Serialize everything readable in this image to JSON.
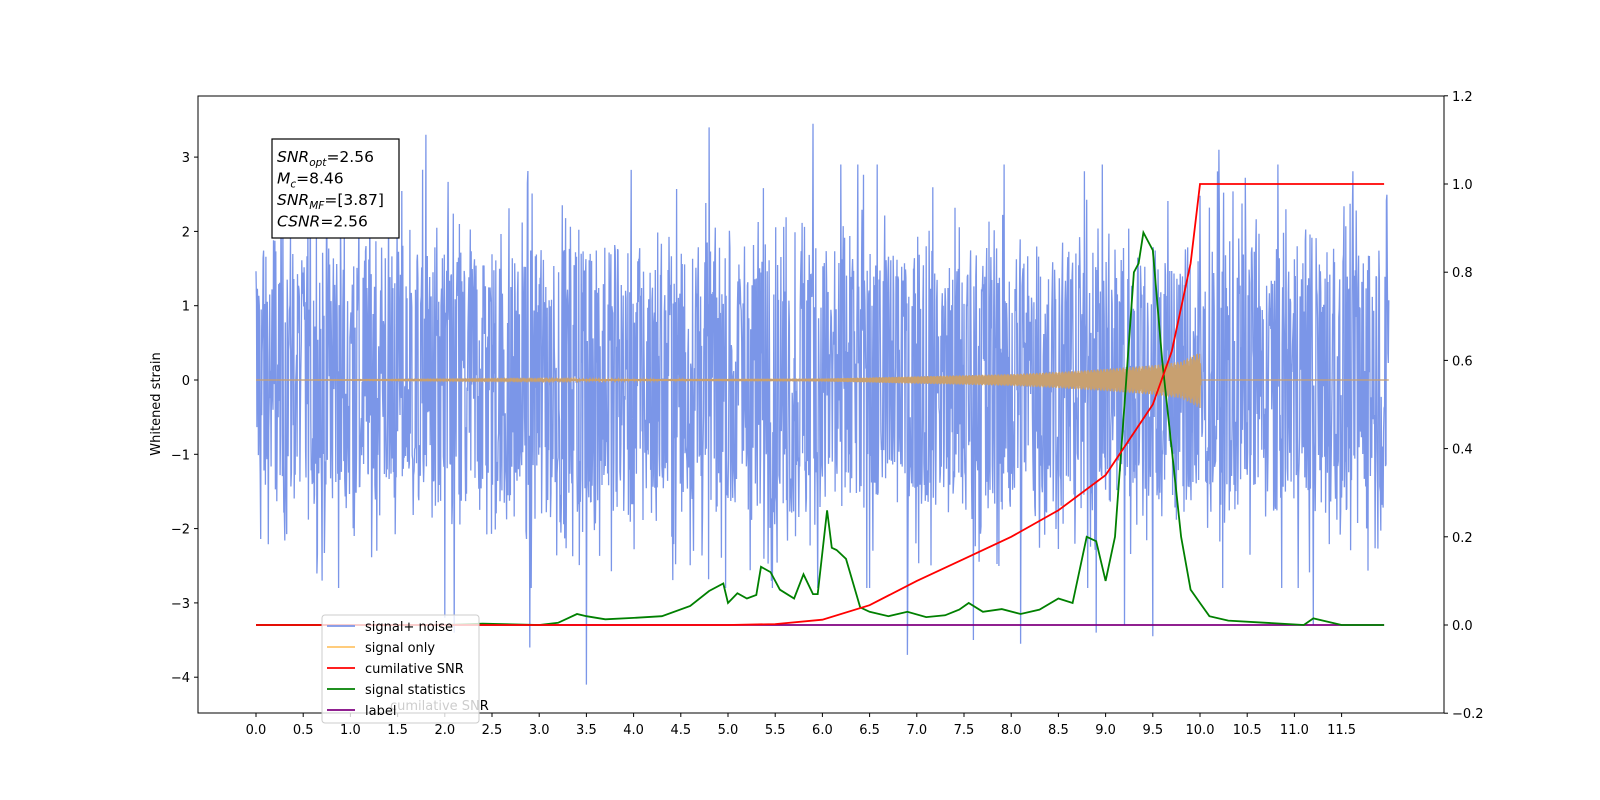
{
  "chart_data": {
    "type": "line",
    "ylabel": "Whitened strain",
    "x_ticks": [
      "0.0",
      "0.5",
      "1.0",
      "1.5",
      "2.0",
      "2.5",
      "3.0",
      "3.5",
      "4.0",
      "4.5",
      "5.0",
      "5.5",
      "6.0",
      "6.5",
      "7.0",
      "7.5",
      "8.0",
      "8.5",
      "9.0",
      "9.5",
      "10.0",
      "10.5",
      "11.0",
      "11.5"
    ],
    "left_axis": {
      "ylim": [
        -4.5,
        3.8
      ],
      "ticks": [
        "−4",
        "−3",
        "−2",
        "−1",
        "0",
        "1",
        "2",
        "3"
      ],
      "tick_values": [
        -4,
        -3,
        -2,
        -1,
        0,
        1,
        2,
        3
      ]
    },
    "right_axis": {
      "ylim": [
        -0.2,
        1.2
      ],
      "ticks": [
        "−0.2",
        "0.0",
        "0.2",
        "0.4",
        "0.6",
        "0.8",
        "1.0",
        "1.2"
      ],
      "tick_values": [
        -0.2,
        0.0,
        0.2,
        0.4,
        0.6,
        0.8,
        1.0,
        1.2
      ]
    },
    "xlim": [
      -0.6,
      12.6
    ],
    "annotation": {
      "lines": [
        {
          "name": "SNR",
          "sub": "opt",
          "value": "=2.56"
        },
        {
          "name": "M",
          "sub": "c",
          "value": "=8.46"
        },
        {
          "name": "SNR",
          "sub": "MF",
          "value": "=[3.87]"
        },
        {
          "name": "CSNR",
          "sub": "",
          "value": "=2.56"
        }
      ]
    },
    "legend": {
      "placement": "lower-left",
      "entries": [
        {
          "label": "signal+ noise",
          "color": "#7b96e8"
        },
        {
          "label": "signal only",
          "color": "#ffc46a"
        },
        {
          "label": "cumilative SNR",
          "color": "#ff0000"
        },
        {
          "label": "signal statistics",
          "color": "#008000"
        },
        {
          "label": "label",
          "color": "#800080"
        }
      ],
      "overlap_text": "cumilative SNR"
    },
    "series": [
      {
        "name": "signal+ noise",
        "axis": "left",
        "color": "#7b96e8",
        "x_range": [
          0.0,
          12.0
        ],
        "envelope": {
          "typical_amplitude": 2.0,
          "max": 3.45,
          "min": -4.1
        },
        "spikes": [
          {
            "x": 0.7,
            "y": -2.7
          },
          {
            "x": 1.8,
            "y": 3.3
          },
          {
            "x": 2.0,
            "y": -3.2
          },
          {
            "x": 2.1,
            "y": -3.4
          },
          {
            "x": 2.9,
            "y": -3.6
          },
          {
            "x": 3.5,
            "y": -4.1
          },
          {
            "x": 4.8,
            "y": 3.4
          },
          {
            "x": 5.9,
            "y": 3.45
          },
          {
            "x": 6.9,
            "y": -3.7
          },
          {
            "x": 7.6,
            "y": -3.5
          },
          {
            "x": 8.1,
            "y": -3.55
          },
          {
            "x": 8.9,
            "y": -3.4
          },
          {
            "x": 9.2,
            "y": -3.3
          },
          {
            "x": 9.5,
            "y": -3.45
          },
          {
            "x": 10.2,
            "y": 3.1
          },
          {
            "x": 11.2,
            "y": -3.3
          }
        ]
      },
      {
        "name": "signal only",
        "axis": "left",
        "color": "#ffc46a",
        "x": [
          0.0,
          6.0,
          7.0,
          8.0,
          8.5,
          9.0,
          9.5,
          9.8,
          10.0,
          10.01,
          12.0
        ],
        "amplitude": [
          0.0,
          0.02,
          0.05,
          0.08,
          0.11,
          0.15,
          0.2,
          0.25,
          0.38,
          0.0,
          0.0
        ]
      },
      {
        "name": "cumilative SNR",
        "axis": "right",
        "color": "#ff0000",
        "x": [
          0.0,
          5.0,
          5.5,
          6.0,
          6.5,
          7.0,
          7.5,
          8.0,
          8.5,
          9.0,
          9.5,
          9.7,
          9.9,
          10.0,
          11.95
        ],
        "y": [
          0.0,
          0.0,
          0.002,
          0.012,
          0.045,
          0.1,
          0.15,
          0.2,
          0.26,
          0.34,
          0.5,
          0.62,
          0.82,
          1.0,
          1.0
        ]
      },
      {
        "name": "signal statistics",
        "axis": "right",
        "color": "#008000",
        "x": [
          0.0,
          2.0,
          2.4,
          3.0,
          3.2,
          3.3,
          3.4,
          3.5,
          3.7,
          4.0,
          4.3,
          4.6,
          4.8,
          4.95,
          5.0,
          5.1,
          5.2,
          5.3,
          5.35,
          5.45,
          5.55,
          5.7,
          5.8,
          5.9,
          5.95,
          6.05,
          6.1,
          6.15,
          6.25,
          6.4,
          6.5,
          6.7,
          6.9,
          7.1,
          7.3,
          7.45,
          7.55,
          7.7,
          7.9,
          8.1,
          8.3,
          8.5,
          8.65,
          8.8,
          8.9,
          9.0,
          9.1,
          9.2,
          9.3,
          9.35,
          9.4,
          9.5,
          9.6,
          9.7,
          9.8,
          9.9,
          10.0,
          10.1,
          10.3,
          10.7,
          11.1,
          11.2,
          11.5,
          11.95
        ],
        "y": [
          0.0,
          0.0,
          0.003,
          0.0,
          0.005,
          0.015,
          0.025,
          0.02,
          0.013,
          0.016,
          0.02,
          0.043,
          0.077,
          0.094,
          0.05,
          0.072,
          0.06,
          0.068,
          0.132,
          0.12,
          0.08,
          0.06,
          0.115,
          0.07,
          0.07,
          0.26,
          0.175,
          0.17,
          0.15,
          0.04,
          0.03,
          0.02,
          0.03,
          0.018,
          0.022,
          0.035,
          0.05,
          0.03,
          0.036,
          0.025,
          0.035,
          0.06,
          0.05,
          0.2,
          0.19,
          0.1,
          0.2,
          0.5,
          0.8,
          0.82,
          0.89,
          0.85,
          0.6,
          0.4,
          0.2,
          0.08,
          0.05,
          0.02,
          0.01,
          0.005,
          0.0,
          0.015,
          0.0,
          0.0
        ]
      },
      {
        "name": "label",
        "axis": "right",
        "color": "#800080",
        "x": [
          0.0,
          11.95
        ],
        "y": [
          0.0,
          0.0
        ]
      }
    ]
  }
}
